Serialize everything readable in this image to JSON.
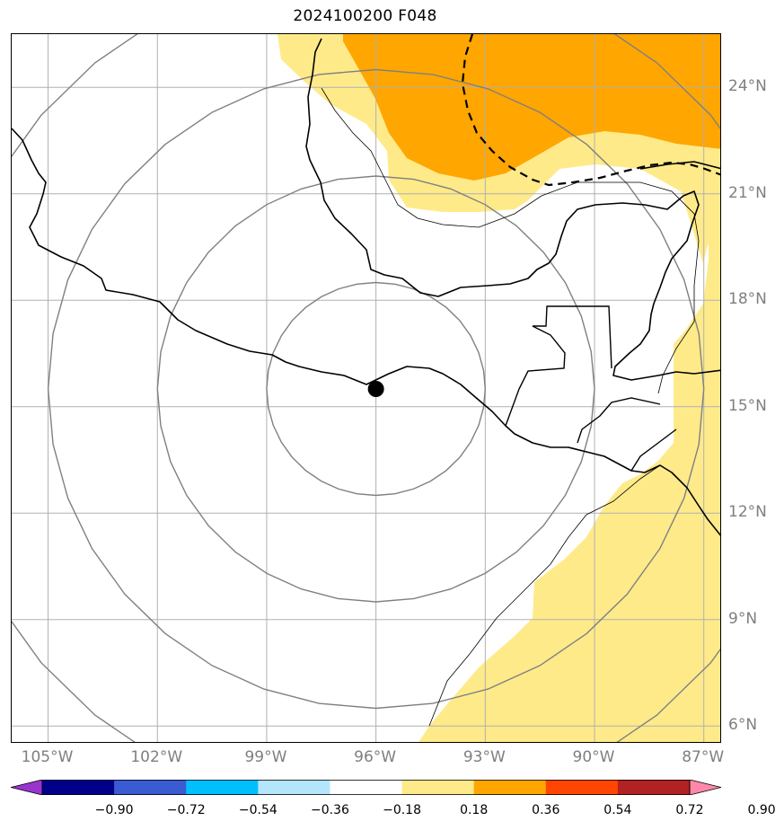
{
  "title": "2024100200 F048",
  "map": {
    "projection": "lat-lon",
    "extent": {
      "lon_min": -106,
      "lon_max": -86.5,
      "lat_min": 5.5,
      "lat_max": 25.5
    },
    "storm_center": {
      "lon": -96.0,
      "lat": 15.5
    },
    "range_rings_degrees": [
      3,
      6,
      9,
      12
    ],
    "shaded_regions": [
      {
        "name": "gulf-yellow",
        "color": "#ffea8a",
        "level": "0.18 to 0.36"
      },
      {
        "name": "gulf-orange",
        "color": "#ffa600",
        "level": "0.36 to 0.54"
      },
      {
        "name": "caribbean-yellow",
        "color": "#ffea8a",
        "level": "0.18 to 0.36"
      },
      {
        "name": "pacific-yellow",
        "color": "#ffea8a",
        "level": "0.18 to 0.36"
      }
    ],
    "gridlines": true
  },
  "lon_labels": [
    "105°W",
    "102°W",
    "99°W",
    "96°W",
    "93°W",
    "90°W",
    "87°W"
  ],
  "lat_labels": [
    "24°N",
    "21°N",
    "18°N",
    "15°N",
    "12°N",
    "9°N",
    "6°N"
  ],
  "colorbar": {
    "colors": [
      "#9a34cf",
      "#00008b",
      "#3a5bd1",
      "#00bfff",
      "#b4e5fb",
      "#ffffff",
      "#ffea8a",
      "#ffa600",
      "#ff4500",
      "#b22222",
      "#ff88aa"
    ],
    "tick_labels": [
      "−0.90",
      "−0.72",
      "−0.54",
      "−0.36",
      "−0.18",
      "0.18",
      "0.36",
      "0.54",
      "0.72",
      "0.90"
    ]
  }
}
